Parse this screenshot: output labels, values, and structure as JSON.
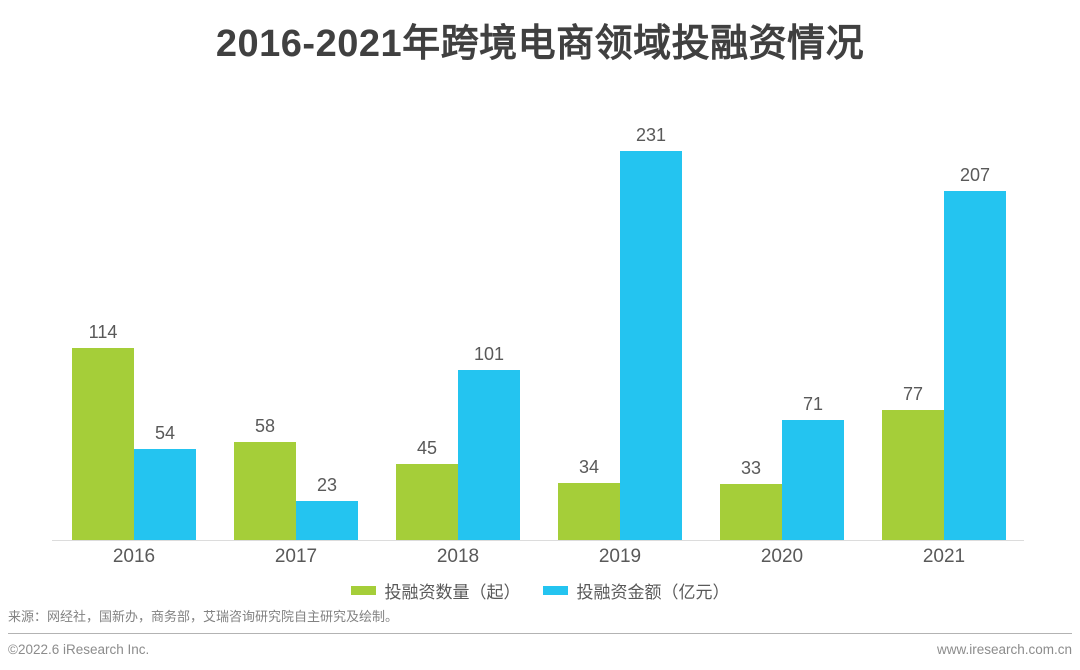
{
  "title": "2016-2021年跨境电商领域投融资情况",
  "chart_data": {
    "type": "bar",
    "title": "2016-2021年跨境电商领域投融资情况",
    "categories": [
      "2016",
      "2017",
      "2018",
      "2019",
      "2020",
      "2021"
    ],
    "series": [
      {
        "name": "投融资数量（起）",
        "color": "#a5ce39",
        "values": [
          114,
          58,
          45,
          34,
          33,
          77
        ]
      },
      {
        "name": "投融资金额（亿元）",
        "color": "#24c4f0",
        "values": [
          54,
          23,
          101,
          231,
          71,
          207
        ]
      }
    ],
    "xlabel": "",
    "ylabel": "",
    "ylim": [
      0,
      260
    ],
    "grid": false,
    "value_labels": true,
    "legend_position": "bottom"
  },
  "source_note": "来源：网经社，国新办，商务部，艾瑞咨询研究院自主研究及绘制。",
  "footer": {
    "left": "©2022.6 iResearch Inc.",
    "right": "www.iresearch.com.cn"
  },
  "colors": {
    "title_text": "#404040",
    "label_text": "#595959",
    "muted_text": "#8c8c8c",
    "baseline": "#dcdcdc",
    "divider": "#b3b3b3",
    "series_count": "#a5ce39",
    "series_amount": "#24c4f0"
  }
}
